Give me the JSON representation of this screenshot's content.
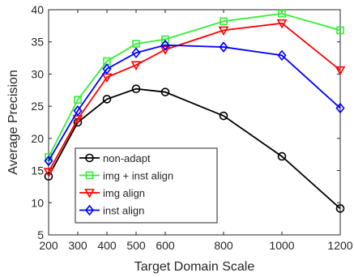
{
  "chart_data": {
    "type": "line",
    "xlabel": "Target Domain Scale",
    "ylabel": "Average Precision",
    "xlim": [
      200,
      1200
    ],
    "ylim": [
      5,
      40
    ],
    "xticks": [
      200,
      300,
      400,
      500,
      600,
      800,
      1000,
      1200
    ],
    "yticks": [
      5,
      10,
      15,
      20,
      25,
      30,
      35,
      40
    ],
    "x": [
      200,
      300,
      400,
      500,
      600,
      800,
      1000,
      1200
    ],
    "grid": false,
    "legend_position": "bottom-left",
    "series": [
      {
        "name": "non-adapt",
        "color": "#000000",
        "marker": "circle",
        "values": [
          14.1,
          22.5,
          26.1,
          27.7,
          27.2,
          23.5,
          17.2,
          9.1
        ]
      },
      {
        "name": "img + inst align",
        "color": "#33ee33",
        "marker": "square",
        "values": [
          17.1,
          26.0,
          32.0,
          34.7,
          35.4,
          38.2,
          39.4,
          36.8
        ]
      },
      {
        "name": "img align",
        "color": "#ff0000",
        "marker": "triangle-down",
        "values": [
          14.8,
          23.0,
          29.5,
          31.4,
          33.8,
          36.8,
          37.9,
          30.6
        ]
      },
      {
        "name": "inst align",
        "color": "#0000ff",
        "marker": "diamond",
        "values": [
          16.5,
          24.3,
          30.8,
          33.3,
          34.5,
          34.2,
          32.9,
          24.7
        ]
      }
    ]
  }
}
